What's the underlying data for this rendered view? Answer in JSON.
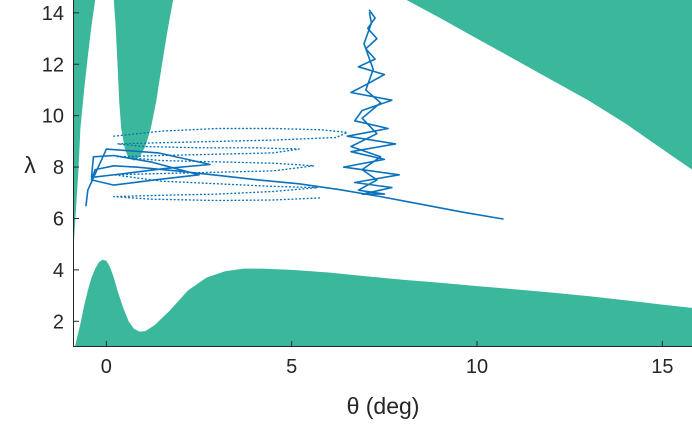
{
  "chart_data": {
    "type": "line",
    "title": "",
    "xlabel": "θ (deg)",
    "ylabel": "λ",
    "xlim": [
      -0.9,
      15.8
    ],
    "ylim": [
      1,
      14.5
    ],
    "xticks": [
      0,
      5,
      10,
      15
    ],
    "yticks": [
      2,
      4,
      6,
      8,
      10,
      12,
      14
    ],
    "grid": false,
    "legend": "none",
    "colors": {
      "region": "#3bb89c",
      "trajectory": "#0b72bd",
      "axis": "#262626"
    },
    "regions": [
      {
        "name": "",
        "boundary": [
          [
            -0.9,
            1.0
          ],
          [
            -0.85,
            1.0
          ],
          [
            -0.8,
            1.3
          ],
          [
            -0.7,
            1.9
          ],
          [
            -0.6,
            2.6
          ],
          [
            -0.5,
            3.2
          ],
          [
            -0.4,
            3.7
          ],
          [
            -0.3,
            4.05
          ],
          [
            -0.2,
            4.3
          ],
          [
            -0.1,
            4.4
          ],
          [
            0.0,
            4.35
          ],
          [
            0.1,
            4.1
          ],
          [
            0.2,
            3.7
          ],
          [
            0.3,
            3.2
          ],
          [
            0.45,
            2.55
          ],
          [
            0.6,
            2.0
          ],
          [
            0.75,
            1.7
          ],
          [
            0.9,
            1.6
          ],
          [
            1.05,
            1.62
          ],
          [
            1.3,
            1.85
          ],
          [
            1.7,
            2.4
          ],
          [
            2.2,
            3.2
          ],
          [
            2.7,
            3.7
          ],
          [
            3.2,
            3.95
          ],
          [
            3.7,
            4.05
          ],
          [
            4.2,
            4.05
          ],
          [
            5,
            4.0
          ],
          [
            6,
            3.9
          ],
          [
            7,
            3.75
          ],
          [
            8,
            3.62
          ],
          [
            9,
            3.5
          ],
          [
            10,
            3.37
          ],
          [
            11,
            3.25
          ],
          [
            12,
            3.12
          ],
          [
            13,
            2.98
          ],
          [
            14,
            2.82
          ],
          [
            15,
            2.65
          ],
          [
            15.8,
            2.52
          ],
          [
            15.8,
            1.0
          ]
        ]
      },
      {
        "name": "",
        "boundary": [
          [
            -0.9,
            4.5
          ],
          [
            -0.85,
            5.7
          ],
          [
            -0.8,
            6.8
          ],
          [
            -0.75,
            8.0
          ],
          [
            -0.7,
            9.5
          ],
          [
            -0.6,
            11.0
          ],
          [
            -0.5,
            12.3
          ],
          [
            -0.4,
            13.5
          ],
          [
            -0.3,
            14.5
          ],
          [
            -0.9,
            14.5
          ]
        ]
      },
      {
        "name": "",
        "boundary": [
          [
            0.2,
            14.5
          ],
          [
            0.25,
            13.5
          ],
          [
            0.3,
            12.0
          ],
          [
            0.35,
            10.5
          ],
          [
            0.4,
            9.5
          ],
          [
            0.5,
            8.7
          ],
          [
            0.6,
            8.35
          ],
          [
            0.75,
            8.25
          ],
          [
            0.9,
            8.4
          ],
          [
            1.05,
            8.8
          ],
          [
            1.2,
            9.5
          ],
          [
            1.35,
            10.6
          ],
          [
            1.5,
            12.0
          ],
          [
            1.65,
            13.3
          ],
          [
            1.8,
            14.5
          ]
        ]
      },
      {
        "name": "",
        "boundary": [
          [
            8.1,
            14.5
          ],
          [
            9,
            13.8
          ],
          [
            10,
            13.0
          ],
          [
            11,
            12.2
          ],
          [
            12,
            11.4
          ],
          [
            13,
            10.6
          ],
          [
            14,
            9.7
          ],
          [
            15,
            8.7
          ],
          [
            15.8,
            7.9
          ],
          [
            15.8,
            14.5
          ]
        ]
      }
    ],
    "series": [
      {
        "style": "solid",
        "points": [
          [
            10.7,
            5.98
          ],
          [
            9.6,
            6.25
          ],
          [
            8.5,
            6.55
          ],
          [
            7.4,
            6.85
          ],
          [
            6.3,
            7.12
          ],
          [
            5.2,
            7.35
          ],
          [
            4.1,
            7.5
          ],
          [
            3.0,
            7.68
          ],
          [
            1.9,
            7.85
          ],
          [
            0.8,
            8.0
          ],
          [
            0.2,
            8.05
          ],
          [
            -0.3,
            7.9
          ],
          [
            -0.4,
            7.5
          ],
          [
            0.2,
            7.3
          ],
          [
            1.3,
            7.5
          ],
          [
            2.5,
            7.7
          ],
          [
            1.2,
            8.2
          ],
          [
            0.2,
            8.45
          ],
          [
            -0.35,
            8.4
          ],
          [
            -0.4,
            7.6
          ],
          [
            0.5,
            7.75
          ],
          [
            1.6,
            7.95
          ],
          [
            2.8,
            8.1
          ],
          [
            1.4,
            8.55
          ],
          [
            0.0,
            8.7
          ],
          [
            -0.5,
            7.1
          ],
          [
            -0.55,
            6.5
          ]
        ]
      },
      {
        "style": "solid",
        "points": [
          [
            7.1,
            14.1
          ],
          [
            7.25,
            13.8
          ],
          [
            7.05,
            13.4
          ],
          [
            7.3,
            13.0
          ],
          [
            7.0,
            12.6
          ],
          [
            7.25,
            12.2
          ],
          [
            6.8,
            11.9
          ],
          [
            7.5,
            11.6
          ],
          [
            7.0,
            11.2
          ],
          [
            6.6,
            10.9
          ],
          [
            7.7,
            10.6
          ],
          [
            6.9,
            10.2
          ],
          [
            6.7,
            9.8
          ],
          [
            7.6,
            9.5
          ],
          [
            6.5,
            9.2
          ],
          [
            7.8,
            8.9
          ],
          [
            6.6,
            8.6
          ],
          [
            7.5,
            8.3
          ],
          [
            6.4,
            8.0
          ],
          [
            7.9,
            7.7
          ],
          [
            6.7,
            7.4
          ],
          [
            7.7,
            7.2
          ],
          [
            6.9,
            6.95
          ],
          [
            7.5,
            6.95
          ],
          [
            6.8,
            7.1
          ],
          [
            7.3,
            7.5
          ],
          [
            6.9,
            7.9
          ],
          [
            7.4,
            8.4
          ],
          [
            6.6,
            8.8
          ],
          [
            7.3,
            9.3
          ],
          [
            6.9,
            9.9
          ],
          [
            7.4,
            10.5
          ],
          [
            7.0,
            11.0
          ],
          [
            7.2,
            11.8
          ],
          [
            6.95,
            12.8
          ],
          [
            7.15,
            13.6
          ],
          [
            7.1,
            14.0
          ]
        ]
      },
      {
        "style": "dotted",
        "points": [
          [
            0.2,
            9.2
          ],
          [
            1.5,
            9.4
          ],
          [
            3,
            9.5
          ],
          [
            4.5,
            9.5
          ],
          [
            5.8,
            9.45
          ],
          [
            6.5,
            9.35
          ],
          [
            6.2,
            9.15
          ],
          [
            4.5,
            9.05
          ],
          [
            3,
            9.0
          ],
          [
            1.5,
            8.95
          ],
          [
            0.3,
            8.9
          ],
          [
            1.0,
            8.8
          ],
          [
            2.5,
            8.75
          ],
          [
            4.0,
            8.75
          ],
          [
            5.2,
            8.7
          ],
          [
            4.5,
            8.55
          ],
          [
            3,
            8.5
          ],
          [
            1.5,
            8.45
          ],
          [
            0.3,
            8.4
          ],
          [
            1.5,
            8.25
          ],
          [
            3,
            8.2
          ],
          [
            4.5,
            8.15
          ],
          [
            5.6,
            8.05
          ],
          [
            4.5,
            7.85
          ],
          [
            3,
            7.8
          ],
          [
            1.5,
            7.75
          ],
          [
            0.2,
            7.7
          ],
          [
            1.5,
            7.45
          ],
          [
            3,
            7.35
          ],
          [
            4.5,
            7.25
          ],
          [
            5.7,
            7.2
          ],
          [
            4.5,
            7.05
          ],
          [
            3,
            6.95
          ],
          [
            1.5,
            6.9
          ],
          [
            0.2,
            6.85
          ],
          [
            1.2,
            6.75
          ],
          [
            3,
            6.7
          ],
          [
            4.5,
            6.72
          ],
          [
            5.8,
            6.8
          ]
        ]
      }
    ]
  }
}
